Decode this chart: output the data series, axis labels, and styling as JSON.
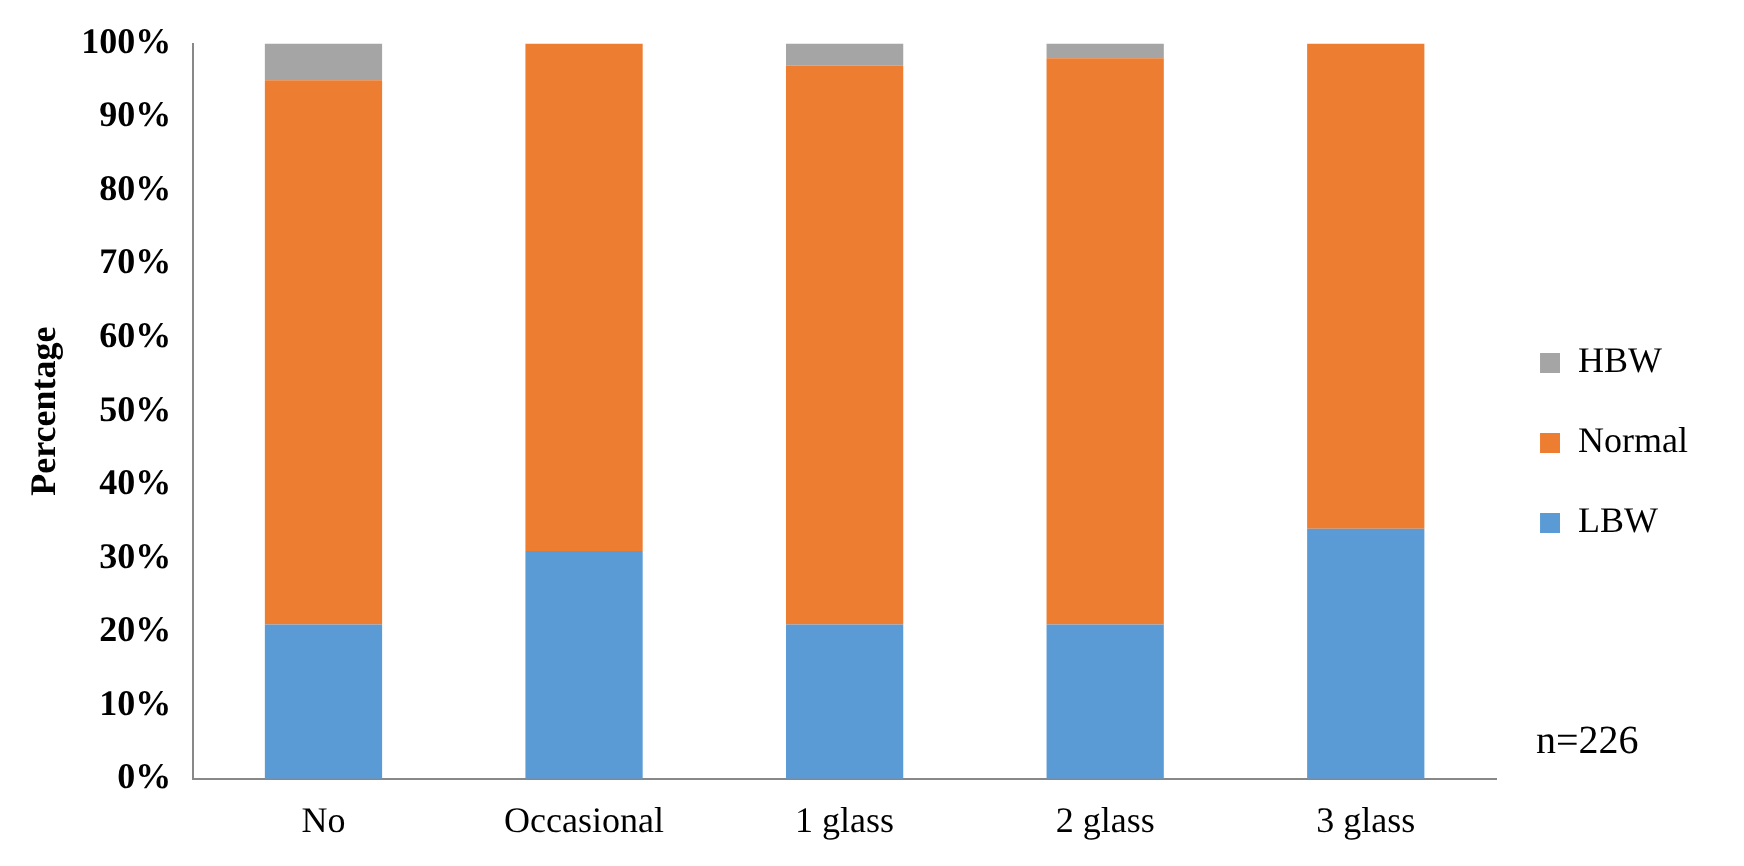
{
  "chart_data": {
    "type": "bar",
    "stacked": true,
    "ylabel": "Percentage",
    "categories": [
      "No",
      "Occasional",
      "1 glass",
      "2 glass",
      "3 glass"
    ],
    "series": [
      {
        "name": "LBW",
        "color": "#5b9bd5",
        "values": [
          21,
          31,
          21,
          21,
          34
        ]
      },
      {
        "name": "Normal",
        "color": "#ed7d31",
        "values": [
          74,
          69,
          76,
          77,
          66
        ]
      },
      {
        "name": "HBW",
        "color": "#a5a5a5",
        "values": [
          5,
          0,
          3,
          2,
          0
        ]
      }
    ],
    "ylim": [
      0,
      100
    ],
    "yticks": [
      {
        "value": 0,
        "label": "0%"
      },
      {
        "value": 10,
        "label": "10%"
      },
      {
        "value": 20,
        "label": "20%"
      },
      {
        "value": 30,
        "label": "30%"
      },
      {
        "value": 40,
        "label": "40%"
      },
      {
        "value": 50,
        "label": "50%"
      },
      {
        "value": 60,
        "label": "60%"
      },
      {
        "value": 70,
        "label": "70%"
      },
      {
        "value": 80,
        "label": "80%"
      },
      {
        "value": 90,
        "label": "90%"
      },
      {
        "value": 100,
        "label": "100%"
      }
    ],
    "grid": false,
    "legend": "right",
    "annotations": [
      "n=226"
    ]
  }
}
